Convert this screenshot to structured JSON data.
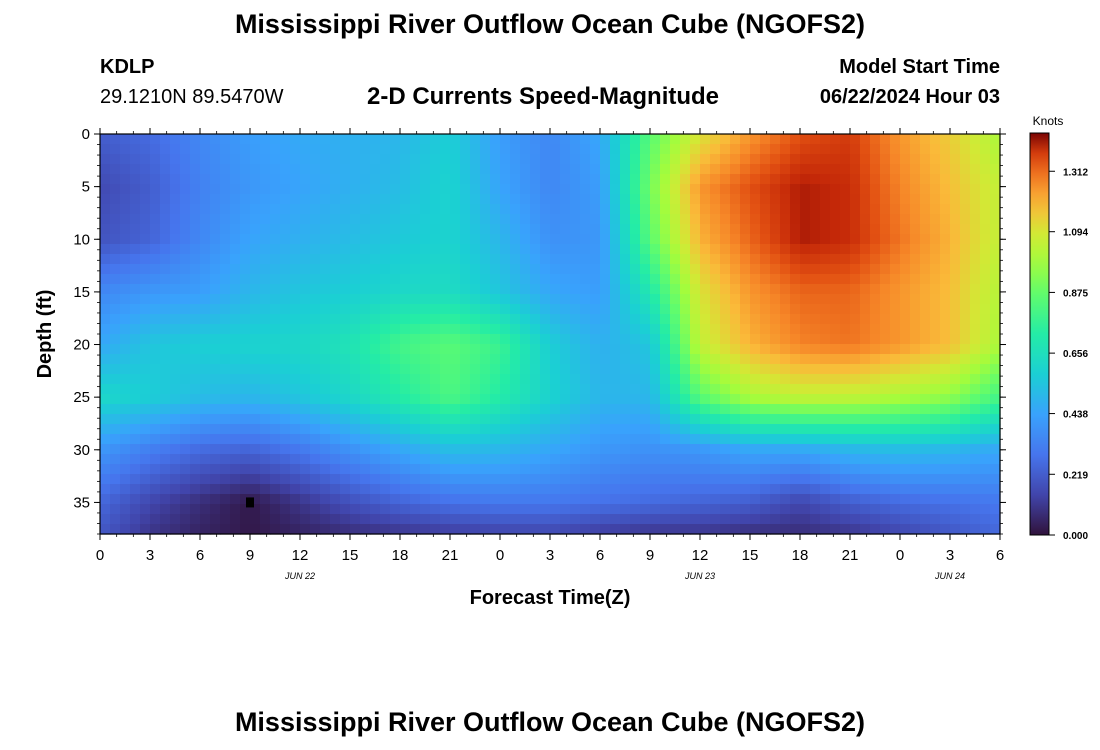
{
  "header": {
    "title": "Mississippi River Outflow Ocean Cube (NGOFS2)",
    "station_id": "KDLP",
    "station_coords": "29.1210N  89.5470W",
    "subtitle": "2-D Currents Speed-Magnitude",
    "model_start_label": "Model Start Time",
    "model_start_value": "06/22/2024 Hour 03"
  },
  "footer": {
    "title": "Mississippi River Outflow Ocean Cube (NGOFS2)"
  },
  "chart_data": {
    "type": "heatmap",
    "title": "2-D Currents Speed-Magnitude",
    "xlabel": "Forecast Time(Z)",
    "ylabel": "Depth (ft)",
    "x_tick_labels": [
      "0",
      "3",
      "6",
      "9",
      "12",
      "15",
      "18",
      "21",
      "0",
      "3",
      "6",
      "9",
      "12",
      "15",
      "18",
      "21",
      "0",
      "3",
      "6"
    ],
    "x_hours": [
      0,
      3,
      6,
      9,
      12,
      15,
      18,
      21,
      24,
      27,
      30,
      33,
      36,
      39,
      42,
      45,
      48,
      51,
      54
    ],
    "date_labels": [
      {
        "label": "JUN 22",
        "hour": 12
      },
      {
        "label": "JUN 23",
        "hour": 36
      },
      {
        "label": "JUN 24",
        "hour": 51
      }
    ],
    "y_tick_labels": [
      "0",
      "5",
      "10",
      "15",
      "20",
      "25",
      "30",
      "35"
    ],
    "y_depths": [
      0,
      5,
      10,
      15,
      20,
      25,
      30,
      35
    ],
    "xlim_hours": [
      0,
      54
    ],
    "ylim_ft": [
      0,
      38
    ],
    "y_inverted": true,
    "colorbar": {
      "label": "Knots",
      "tick_labels": [
        "0.000",
        "0.219",
        "0.438",
        "0.656",
        "0.875",
        "1.094",
        "1.312"
      ],
      "ticks": [
        0,
        0.219,
        0.438,
        0.656,
        0.875,
        1.094,
        1.312
      ],
      "range": [
        0,
        1.45
      ]
    },
    "speed_grid": {
      "units": "knots",
      "x_hours": [
        0,
        3,
        6,
        9,
        12,
        15,
        18,
        21,
        24,
        27,
        30,
        33,
        36,
        39,
        42,
        45,
        48,
        51,
        54
      ],
      "y_depths_ft": [
        0,
        5,
        10,
        15,
        20,
        25,
        30,
        35,
        38
      ],
      "values": [
        [
          0.22,
          0.26,
          0.35,
          0.42,
          0.46,
          0.48,
          0.5,
          0.58,
          0.42,
          0.35,
          0.45,
          0.85,
          1.1,
          1.25,
          1.35,
          1.38,
          1.25,
          1.15,
          1.0
        ],
        [
          0.16,
          0.22,
          0.33,
          0.4,
          0.44,
          0.48,
          0.52,
          0.6,
          0.44,
          0.35,
          0.42,
          0.9,
          1.25,
          1.35,
          1.42,
          1.4,
          1.28,
          1.18,
          1.05
        ],
        [
          0.19,
          0.24,
          0.35,
          0.44,
          0.48,
          0.52,
          0.56,
          0.6,
          0.5,
          0.38,
          0.4,
          0.85,
          1.2,
          1.32,
          1.42,
          1.4,
          1.3,
          1.2,
          1.05
        ],
        [
          0.35,
          0.4,
          0.42,
          0.5,
          0.55,
          0.58,
          0.62,
          0.64,
          0.55,
          0.45,
          0.42,
          0.7,
          1.1,
          1.25,
          1.32,
          1.32,
          1.25,
          1.18,
          1.02
        ],
        [
          0.45,
          0.55,
          0.58,
          0.6,
          0.62,
          0.68,
          0.8,
          0.85,
          0.78,
          0.58,
          0.48,
          0.55,
          1.05,
          1.2,
          1.28,
          1.3,
          1.25,
          1.18,
          1.0
        ],
        [
          0.62,
          0.58,
          0.52,
          0.5,
          0.55,
          0.62,
          0.72,
          0.82,
          0.72,
          0.6,
          0.5,
          0.5,
          0.85,
          1.0,
          1.05,
          1.05,
          1.0,
          0.95,
          0.8
        ],
        [
          0.4,
          0.32,
          0.26,
          0.24,
          0.3,
          0.38,
          0.45,
          0.52,
          0.5,
          0.45,
          0.4,
          0.38,
          0.4,
          0.45,
          0.45,
          0.5,
          0.52,
          0.5,
          0.45
        ],
        [
          0.25,
          0.15,
          0.08,
          0.02,
          0.1,
          0.18,
          0.24,
          0.28,
          0.3,
          0.3,
          0.28,
          0.26,
          0.24,
          0.22,
          0.15,
          0.22,
          0.26,
          0.28,
          0.3
        ],
        [
          0.2,
          0.1,
          0.05,
          0.02,
          0.05,
          0.08,
          0.1,
          0.12,
          0.14,
          0.15,
          0.12,
          0.1,
          0.1,
          0.08,
          0.08,
          0.1,
          0.15,
          0.2,
          0.25
        ]
      ]
    }
  }
}
